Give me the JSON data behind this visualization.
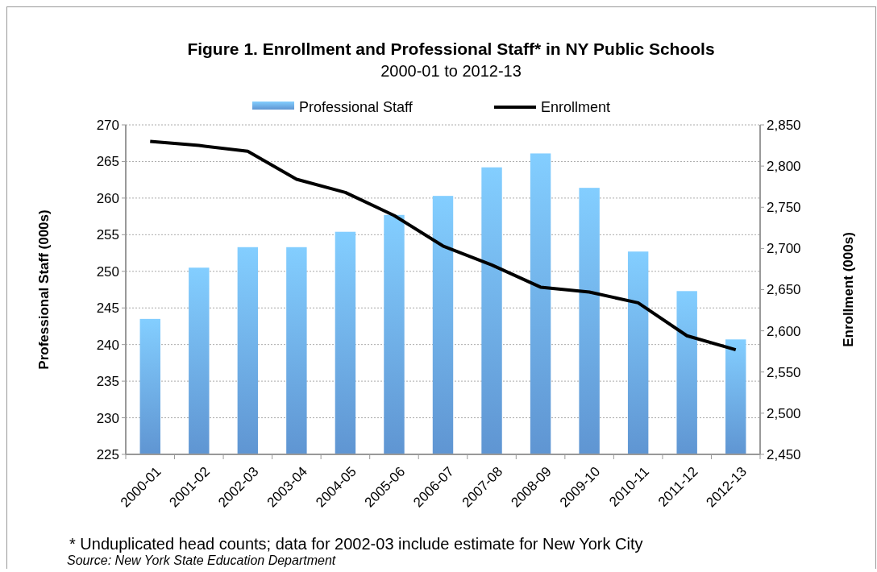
{
  "chart_data": {
    "type": "bar",
    "title": "Figure 1. Enrollment and Professional Staff* in NY Public Schools",
    "subtitle": "2000-01 to 2012-13",
    "ylabel": "Professional Staff (000s)",
    "y2label": "Enrollment (000s)",
    "categories": [
      "2000-01",
      "2001-02",
      "2002-03",
      "2003-04",
      "2004-05",
      "2005-06",
      "2006-07",
      "2007-08",
      "2008-09",
      "2009-10",
      "2010-11",
      "2011-12",
      "2012-13"
    ],
    "series": [
      {
        "name": "Professional Staff",
        "color": "#6aa6ea",
        "values": [
          243.5,
          250.5,
          253.3,
          253.3,
          255.4,
          257.7,
          260.3,
          264.2,
          266.1,
          261.4,
          252.7,
          247.3,
          240.7
        ]
      },
      {
        "name": "Enrollment",
        "type": "line",
        "axis": "y2",
        "color": "#000000",
        "values": [
          2830,
          2825,
          2818,
          2784,
          2768,
          2740,
          2703,
          2680,
          2653,
          2647,
          2634,
          2594,
          2577
        ]
      }
    ],
    "ylim": [
      225,
      270
    ],
    "yticks": [
      225,
      230,
      235,
      240,
      245,
      250,
      255,
      260,
      265,
      270
    ],
    "y2lim": [
      2450,
      2850
    ],
    "y2ticks": [
      {
        "value": 2450,
        "label": "2,450"
      },
      {
        "value": 2500,
        "label": "2,500"
      },
      {
        "value": 2550,
        "label": "2,550"
      },
      {
        "value": 2600,
        "label": "2,600"
      },
      {
        "value": 2650,
        "label": "2,650"
      },
      {
        "value": 2700,
        "label": "2,700"
      },
      {
        "value": 2750,
        "label": "2,750"
      },
      {
        "value": 2800,
        "label": "2,800"
      },
      {
        "value": 2850,
        "label": "2,850"
      }
    ],
    "grid": "y",
    "legend": "top",
    "marker": "none",
    "line_style": "solid",
    "annotations": [
      "* Unduplicated head counts; data for 2002-03 include estimate for New York City",
      "Source: New York State Education Department"
    ]
  }
}
